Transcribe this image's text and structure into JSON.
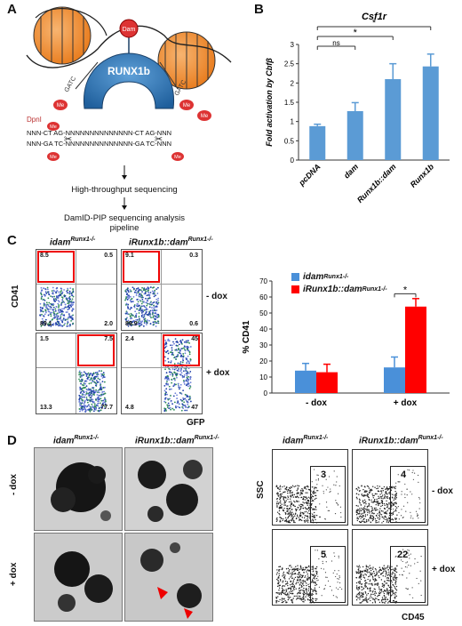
{
  "panels": {
    "A": "A",
    "B": "B",
    "C": "C",
    "D": "D"
  },
  "panelA": {
    "protein": "RUNX1b",
    "dam": "Dam",
    "gatc": "GATC",
    "enzyme": "DpnI",
    "me": "Me",
    "seq_top": "NNN-CT  AG-NNNNNNNNNNNNNN-CT  AG-NNN",
    "seq_bottom": "NNN-GA  TC-NNNNNNNNNNNNNN-GA  TC-NNN",
    "step1": "High-throughput sequencing",
    "step2": "DamID-PIP sequencing analysis",
    "step2b": "pipeline"
  },
  "chart_data": [
    {
      "type": "bar",
      "title": "Csf1r",
      "ylabel": "Fold activation by Cbfβ",
      "categories": [
        "pcDNA",
        "dam",
        "Runx1b::dam",
        "Runx1b"
      ],
      "values": [
        0.88,
        1.27,
        2.1,
        2.43
      ],
      "errors": [
        0.05,
        0.22,
        0.4,
        0.32
      ],
      "ylim": [
        0,
        3
      ],
      "yticks": [
        "0",
        "0.5",
        "1",
        "1.5",
        "2",
        "2.5",
        "3"
      ],
      "color": "#5b9bd5",
      "significance": [
        {
          "from": 0,
          "to": 1,
          "label": "ns"
        },
        {
          "from": 0,
          "to": 2,
          "label": "*"
        },
        {
          "from": 0,
          "to": 3,
          "label": "*"
        }
      ]
    },
    {
      "type": "bar",
      "ylabel": "% CD41",
      "categories": [
        "- dox",
        "+ dox"
      ],
      "series": [
        {
          "name": "idamRunx1-/-",
          "values": [
            14,
            16
          ],
          "errors": [
            4.5,
            6.5
          ],
          "color": "#4a90d9"
        },
        {
          "name": "iRunx1b::damRunx1-/-",
          "values": [
            13,
            54
          ],
          "errors": [
            5,
            5
          ],
          "color": "#ff0000"
        }
      ],
      "ylim": [
        0,
        70
      ],
      "yticks": [
        "0",
        "10",
        "20",
        "30",
        "40",
        "50",
        "60",
        "70"
      ],
      "significance": [
        {
          "group": 1,
          "label": "*"
        }
      ]
    }
  ],
  "panelC": {
    "col1": "idam",
    "col1_sup": "Runx1-/-",
    "col2": "iRunx1b::dam",
    "col2_sup": "Runx1-/-",
    "yaxis": "CD41",
    "xaxis": "GFP",
    "row1": "- dox",
    "row2": "+ dox",
    "plots": [
      {
        "tl": "8.5",
        "tr": "0.5",
        "bl": "89.1",
        "br": "2.0"
      },
      {
        "tl": "9.1",
        "tr": "0.3",
        "bl": "89.9",
        "br": "0.6"
      },
      {
        "tl": "1.5",
        "tr": "7.5",
        "bl": "13.3",
        "br": "77.7"
      },
      {
        "tl": "2.4",
        "tr": "45",
        "bl": "4.8",
        "br": "47"
      }
    ],
    "legend1": "idam",
    "legend1_sup": "Runx1-/-",
    "legend2": "iRunx1b::dam",
    "legend2_sup": "Runx1-/-"
  },
  "panelD": {
    "col1": "idam",
    "col1_sup": "Runx1-/-",
    "col2": "iRunx1b::dam",
    "col2_sup": "Runx1-/-",
    "row1": "- dox",
    "row2": "+ dox",
    "yaxis": "SSC",
    "xaxis": "CD45",
    "gates": [
      "3",
      "4",
      "5",
      "22"
    ]
  }
}
